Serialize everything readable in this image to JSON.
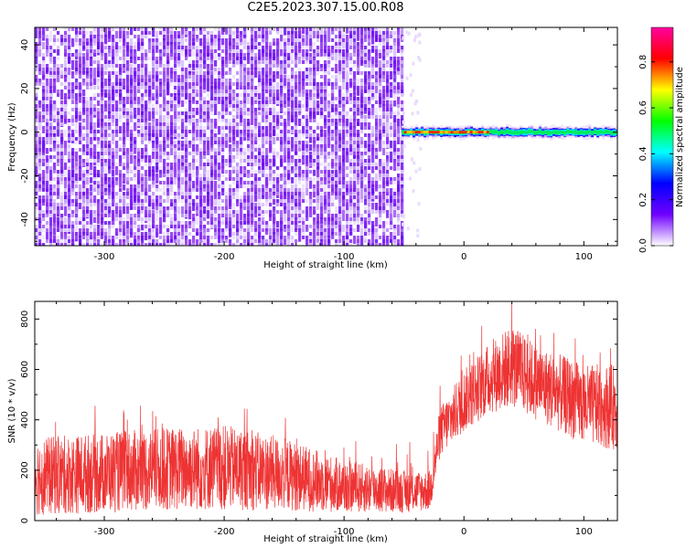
{
  "title": "C2E5.2023.307.15.00.R08",
  "chart_data": [
    {
      "type": "heatmap",
      "xlabel": "Height of straight line (km)",
      "ylabel": "Frequency (Hz)",
      "xlim": [
        -358,
        128
      ],
      "ylim": [
        -52,
        48
      ],
      "xticks": [
        -300,
        -200,
        -100,
        0,
        100
      ],
      "yticks": [
        -40,
        -20,
        0,
        20,
        40
      ],
      "noise_region_x": [
        -358,
        -52
      ],
      "signal_band_x": [
        -52,
        128
      ],
      "signal_band_center_hz": 0,
      "colorbar": {
        "label": "Normalized spectral amplitude",
        "range": [
          0.0,
          0.95
        ],
        "ticks": [
          0.0,
          0.2,
          0.4,
          0.6,
          0.8
        ],
        "colors": [
          "#ffffff",
          "#7000ff",
          "#0000ff",
          "#00ffff",
          "#00ff00",
          "#ffff00",
          "#ff0000",
          "#ff00a0"
        ]
      }
    },
    {
      "type": "line",
      "xlabel": "Height of straight line (km)",
      "ylabel": "SNR (10 * v/v)",
      "xlim": [
        -358,
        128
      ],
      "ylim": [
        0,
        870
      ],
      "xticks": [
        -300,
        -200,
        -100,
        0,
        100
      ],
      "yticks": [
        0,
        200,
        400,
        600,
        800
      ],
      "color": "#ee3333",
      "envelope": {
        "x": [
          -358,
          -300,
          -250,
          -200,
          -150,
          -100,
          -50,
          -28,
          -20,
          0,
          20,
          40,
          60,
          80,
          100,
          128
        ],
        "low": [
          20,
          30,
          40,
          40,
          40,
          30,
          30,
          40,
          250,
          350,
          420,
          450,
          400,
          350,
          300,
          280
        ],
        "high": [
          330,
          350,
          370,
          380,
          330,
          240,
          200,
          200,
          450,
          600,
          700,
          780,
          700,
          660,
          620,
          620
        ]
      }
    }
  ]
}
